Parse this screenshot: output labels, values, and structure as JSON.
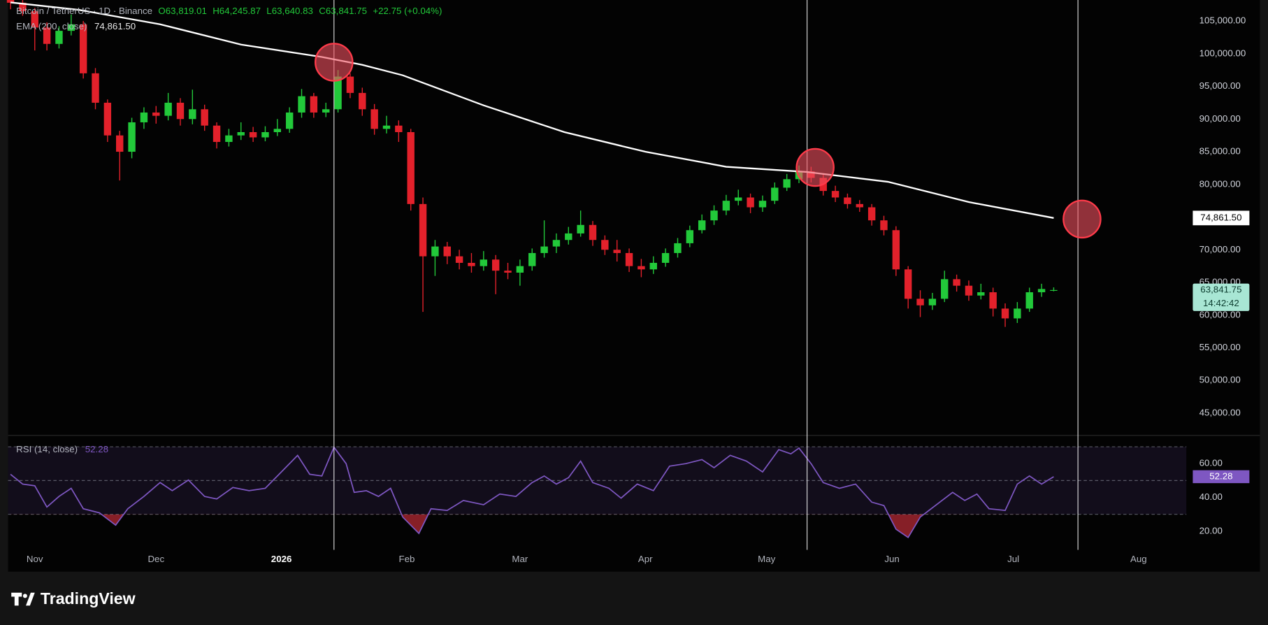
{
  "header": {
    "symbol": "Bitcoin / TetherUS · 1D · Binance",
    "open": "O63,819.01",
    "high": "H64,245.87",
    "low": "L63,640.83",
    "close": "C63,841.75",
    "change": "+22.75 (+0.04%)"
  },
  "chart_data": [
    {
      "type": "candlestick",
      "up_color": "#22c93a",
      "down_color": "#e3212b",
      "x": [
        -6,
        -3,
        0,
        3,
        6,
        9,
        12,
        15,
        18,
        21,
        24,
        27,
        30,
        33,
        36,
        39,
        42,
        45,
        48,
        51,
        54,
        57,
        60,
        63,
        66,
        69,
        72,
        75,
        78,
        81,
        84,
        87,
        90,
        93,
        96,
        99,
        102,
        105,
        108,
        111,
        114,
        117,
        120,
        123,
        126,
        129,
        132,
        135,
        138,
        141,
        144,
        147,
        150,
        153,
        156,
        159,
        162,
        165,
        168,
        171,
        174,
        177,
        180,
        183,
        186,
        189,
        192,
        195,
        198,
        201,
        204,
        207,
        210,
        213,
        216,
        219,
        222,
        225,
        228,
        231,
        234,
        237,
        240,
        243,
        246,
        249,
        252
      ],
      "open": [
        108500,
        107800,
        106500,
        104000,
        101500,
        103500,
        104500,
        97000,
        92500,
        87500,
        85000,
        89500,
        91000,
        90500,
        92500,
        90000,
        91500,
        89000,
        86500,
        87500,
        88000,
        87200,
        88000,
        88500,
        91000,
        93500,
        91000,
        91500,
        96500,
        94000,
        91500,
        88500,
        89000,
        88000,
        77000,
        69000,
        70500,
        69000,
        68000,
        67500,
        68500,
        66800,
        66500,
        67500,
        69500,
        70500,
        71500,
        72500,
        73800,
        71500,
        70000,
        69500,
        67500,
        67000,
        68000,
        69500,
        71000,
        73000,
        74500,
        76000,
        77500,
        78000,
        76500,
        77500,
        79500,
        80800,
        82000,
        81000,
        79000,
        78000,
        77000,
        76500,
        74500,
        73000,
        67000,
        62500,
        61500,
        62500,
        65500,
        64500,
        63000,
        63500,
        61000,
        59500,
        61000,
        63500,
        63819.01
      ],
      "high": [
        109200,
        108400,
        107000,
        104800,
        104200,
        106000,
        105000,
        97800,
        93000,
        88200,
        90200,
        91800,
        92000,
        94000,
        93200,
        94500,
        92200,
        89500,
        88500,
        89500,
        88800,
        88900,
        90000,
        91800,
        94600,
        94000,
        92500,
        97500,
        97000,
        94800,
        92300,
        90500,
        89800,
        88500,
        78000,
        71500,
        71200,
        70000,
        69500,
        69800,
        69200,
        68000,
        68500,
        70200,
        74500,
        72500,
        73500,
        76000,
        74400,
        72200,
        71500,
        70200,
        68600,
        69000,
        70200,
        71800,
        73700,
        75400,
        76800,
        78400,
        79200,
        78600,
        78300,
        80300,
        81600,
        82900,
        82700,
        81600,
        79800,
        78600,
        77600,
        77000,
        75200,
        73600,
        67500,
        63800,
        63400,
        66800,
        66200,
        65300,
        64800,
        64200,
        61800,
        62000,
        64200,
        64800,
        64245.87
      ],
      "low": [
        106800,
        105800,
        100500,
        100500,
        100800,
        102800,
        96200,
        91500,
        86500,
        80600,
        84000,
        88500,
        89300,
        89800,
        89000,
        89200,
        88200,
        85500,
        85800,
        86800,
        86500,
        86600,
        87400,
        87900,
        90200,
        90200,
        90300,
        91000,
        93200,
        90500,
        87600,
        87800,
        86500,
        76000,
        60500,
        66000,
        67800,
        67000,
        66500,
        66800,
        63200,
        65500,
        64500,
        66800,
        68800,
        69500,
        70800,
        72000,
        70600,
        69200,
        68200,
        66600,
        65800,
        66300,
        67400,
        68800,
        70400,
        72500,
        73800,
        75300,
        76800,
        75600,
        75800,
        77000,
        79000,
        80200,
        80300,
        78300,
        77300,
        76300,
        75800,
        73700,
        72200,
        66000,
        61000,
        59700,
        60800,
        62000,
        63600,
        62200,
        62400,
        59800,
        58200,
        58800,
        60500,
        62800,
        63640.83
      ],
      "close": [
        107800,
        106500,
        104000,
        101500,
        103500,
        104500,
        97000,
        92500,
        87500,
        85000,
        89500,
        91000,
        90500,
        92500,
        90000,
        91500,
        89000,
        86500,
        87500,
        88000,
        87200,
        88000,
        88500,
        91000,
        93500,
        91000,
        91500,
        96500,
        94000,
        91500,
        88500,
        89000,
        88000,
        77000,
        69000,
        70500,
        69000,
        68000,
        67500,
        68500,
        66800,
        66500,
        67500,
        69500,
        70500,
        71500,
        72500,
        73800,
        71500,
        70000,
        69500,
        67500,
        67000,
        68000,
        69500,
        71000,
        73000,
        74500,
        76000,
        77500,
        78000,
        76500,
        77500,
        79500,
        80800,
        82000,
        81000,
        79000,
        78000,
        77000,
        76500,
        74500,
        73000,
        67000,
        62500,
        61500,
        62500,
        65500,
        64500,
        63000,
        63500,
        61000,
        59500,
        61000,
        63500,
        64000,
        63841.75
      ],
      "last_label": "63,841.75",
      "countdown": "14:42:42",
      "overlay": {
        "name": "EMA (200, close)",
        "color": "#ffffff",
        "x": [
          -6,
          11,
          31,
          51,
          71,
          81,
          91,
          111,
          131,
          151,
          171,
          191,
          211,
          231,
          252
        ],
        "values": [
          107850,
          106700,
          104500,
          101400,
          99500,
          98300,
          96700,
          92100,
          88000,
          85000,
          82700,
          81900,
          80400,
          77300,
          74861.5
        ],
        "value_label": "74,861.50"
      },
      "vlines": [
        74,
        191,
        258
      ],
      "circles": [
        {
          "x": 74,
          "y": 98700
        },
        {
          "x": 193,
          "y": 82600
        },
        {
          "x": 259,
          "y": 74700
        }
      ],
      "xlim": [
        -6.6,
        284.8
      ],
      "xticks": [
        {
          "value": 0,
          "label": "Nov"
        },
        {
          "value": 30,
          "label": "Dec"
        },
        {
          "value": 61,
          "label": "2026"
        },
        {
          "value": 92,
          "label": "Feb"
        },
        {
          "value": 120,
          "label": "Mar"
        },
        {
          "value": 151,
          "label": "Apr"
        },
        {
          "value": 181,
          "label": "May"
        },
        {
          "value": 212,
          "label": "Jun"
        },
        {
          "value": 242,
          "label": "Jul"
        },
        {
          "value": 273,
          "label": "Aug"
        }
      ],
      "ylim": [
        41782,
        108218
      ],
      "yticks": [
        {
          "value": 45000,
          "label": "45,000.00"
        },
        {
          "value": 50000,
          "label": "50,000.00"
        },
        {
          "value": 55000,
          "label": "55,000.00"
        },
        {
          "value": 60000,
          "label": "60,000.00"
        },
        {
          "value": 65000,
          "label": "65,000.00"
        },
        {
          "value": 70000,
          "label": "70,000.00"
        },
        {
          "value": 75000,
          "label": "75,000.00"
        },
        {
          "value": 80000,
          "label": "80,000.00"
        },
        {
          "value": 85000,
          "label": "85,000.00"
        },
        {
          "value": 90000,
          "label": "90,000.00"
        },
        {
          "value": 95000,
          "label": "95,000.00"
        },
        {
          "value": 100000,
          "label": "100,000.00"
        },
        {
          "value": 105000,
          "label": "105,000.00"
        }
      ]
    },
    {
      "type": "line",
      "name": "RSI (14, close)",
      "color": "#7e57c2",
      "x": [
        -6,
        -3,
        0,
        3,
        6,
        9,
        12,
        16,
        20,
        23,
        27,
        31,
        34,
        38,
        42,
        45,
        49,
        53,
        57,
        61,
        65,
        68,
        71,
        74,
        77,
        79,
        82,
        85,
        88,
        91,
        95,
        98,
        102,
        106,
        111,
        115,
        119,
        123,
        126,
        129,
        132,
        135,
        138,
        142,
        145,
        149,
        153,
        157,
        161,
        165,
        168,
        172,
        176,
        180,
        184,
        187,
        189,
        192,
        195,
        199,
        203,
        207,
        210,
        213,
        216,
        219,
        223,
        227,
        230,
        233,
        236,
        240,
        243,
        246,
        249,
        252
      ],
      "values": [
        53.7,
        47.9,
        46.9,
        34.3,
        40.6,
        45.4,
        33.3,
        30.9,
        23.6,
        33.3,
        40.6,
        48.8,
        44,
        50.3,
        40.6,
        39.1,
        45.9,
        44,
        45.4,
        55.1,
        64.9,
        53.7,
        52.7,
        69.7,
        60,
        43,
        44,
        40.6,
        45.4,
        28.4,
        18.7,
        33.3,
        32.3,
        38.2,
        35.7,
        42,
        40.6,
        48.8,
        52.7,
        47.9,
        51.7,
        61.5,
        48.8,
        45.4,
        39.6,
        47.9,
        44,
        58.5,
        60,
        62.4,
        57.6,
        64.9,
        61.5,
        55.1,
        68.3,
        65.8,
        69.2,
        60,
        48.8,
        45.4,
        47.9,
        37.2,
        35.2,
        21.2,
        16.3,
        28.4,
        35.7,
        43,
        38.2,
        42,
        33.3,
        32.3,
        47.9,
        52.7,
        47.9,
        52.28
      ],
      "value_label": "52.28",
      "levels": [
        30,
        50,
        70
      ],
      "ylim": [
        9,
        76
      ],
      "yticks": [
        {
          "value": 60,
          "label": "60.00"
        },
        {
          "value": 40,
          "label": "40.00"
        },
        {
          "value": 20,
          "label": "20.00"
        }
      ]
    }
  ],
  "footer": {
    "brand": "TradingView"
  }
}
